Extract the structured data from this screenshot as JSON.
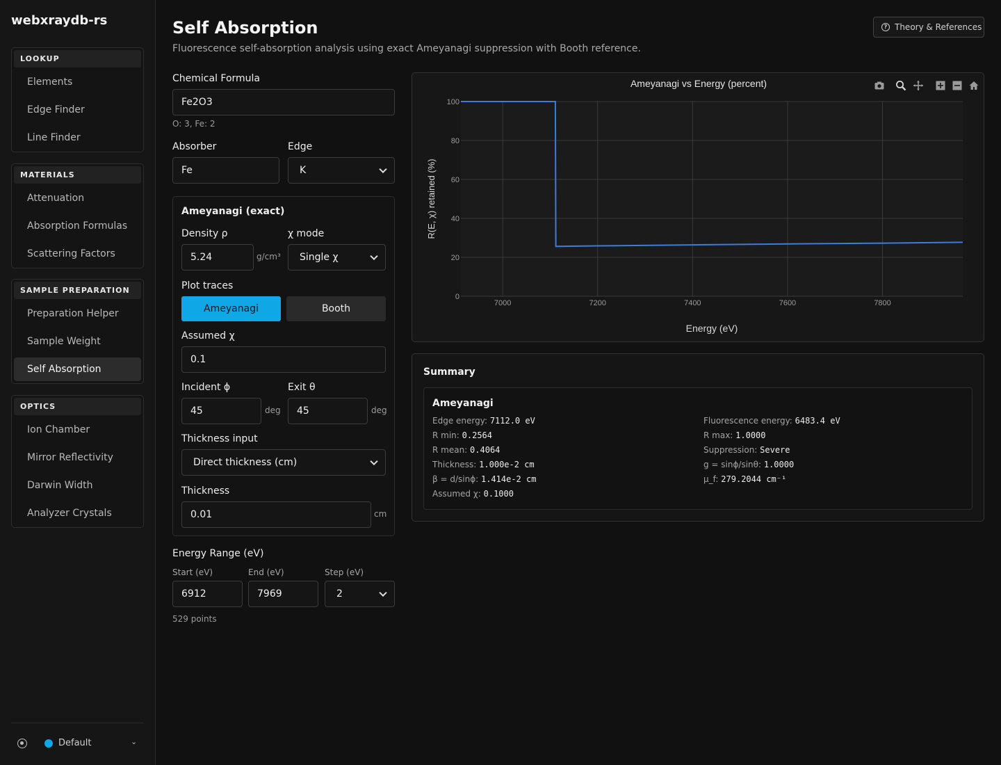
{
  "app": {
    "brand": "webxraydb-rs"
  },
  "sidebar": {
    "groups": [
      {
        "heading": "LOOKUP",
        "items": [
          "Elements",
          "Edge Finder",
          "Line Finder"
        ]
      },
      {
        "heading": "MATERIALS",
        "items": [
          "Attenuation",
          "Absorption Formulas",
          "Scattering Factors"
        ]
      },
      {
        "heading": "SAMPLE PREPARATION",
        "items": [
          "Preparation Helper",
          "Sample Weight",
          "Self Absorption"
        ]
      },
      {
        "heading": "OPTICS",
        "items": [
          "Ion Chamber",
          "Mirror Reflectivity",
          "Darwin Width",
          "Analyzer Crystals"
        ]
      }
    ],
    "active_item": "Self Absorption",
    "footer": {
      "theme_name": "Default",
      "theme_color": "#0fa7e6"
    }
  },
  "header": {
    "title": "Self Absorption",
    "subtitle": "Fluorescence self-absorption analysis using exact Ameyanagi suppression with Booth reference.",
    "theory_button": "Theory & References"
  },
  "form": {
    "formula_label": "Chemical Formula",
    "formula_value": "Fe2O3",
    "formula_parsed": "O: 3, Fe: 2",
    "absorber_label": "Absorber",
    "absorber_value": "Fe",
    "edge_label": "Edge",
    "edge_value": "K",
    "ameyanagi": {
      "title": "Ameyanagi (exact)",
      "density_label": "Density ρ",
      "density_value": "5.24",
      "density_unit": "g/cm³",
      "chi_mode_label": "χ mode",
      "chi_mode_value": "Single χ",
      "plot_traces_label": "Plot traces",
      "trace_ameyanagi": "Ameyanagi",
      "trace_booth": "Booth",
      "assumed_chi_label": "Assumed χ",
      "assumed_chi_value": "0.1",
      "incident_label": "Incident ϕ",
      "incident_value": "45",
      "exit_label": "Exit θ",
      "exit_value": "45",
      "angle_unit": "deg",
      "thickness_input_label": "Thickness input",
      "thickness_input_value": "Direct thickness (cm)",
      "thickness_label": "Thickness",
      "thickness_value": "0.01",
      "thickness_unit": "cm"
    },
    "energy": {
      "title": "Energy Range (eV)",
      "start_label": "Start (eV)",
      "start_value": "6912",
      "end_label": "End (eV)",
      "end_value": "7969",
      "step_label": "Step (eV)",
      "step_value": "2",
      "points": "529 points"
    }
  },
  "chart_data": {
    "type": "line",
    "title": "Ameyanagi vs Energy (percent)",
    "xlabel": "Energy (eV)",
    "ylabel": "R(E, χ) retained (%)",
    "xlim": [
      6912,
      7969
    ],
    "ylim": [
      0,
      100
    ],
    "xticks": [
      7000,
      7200,
      7400,
      7600,
      7800
    ],
    "yticks": [
      0,
      20,
      40,
      60,
      80,
      100
    ],
    "grid": true,
    "color": "#3b7ddd",
    "series": [
      {
        "x": [
          6912,
          7111,
          7112,
          7200,
          7400,
          7600,
          7800,
          7969
        ],
        "y": [
          100,
          100,
          25.6,
          25.9,
          26.4,
          26.9,
          27.3,
          27.7
        ]
      }
    ],
    "toolbar_icons": [
      "camera-icon",
      "zoom-icon",
      "pan-icon",
      "zoom-in-icon",
      "zoom-out-icon",
      "home-icon"
    ]
  },
  "summary": {
    "title": "Summary",
    "card_title": "Ameyanagi",
    "left": [
      {
        "k": "Edge energy:",
        "v": "7112.0 eV"
      },
      {
        "k": "R min:",
        "v": "0.2564"
      },
      {
        "k": "R mean:",
        "v": "0.4064"
      },
      {
        "k": "Thickness:",
        "v": "1.000e-2 cm"
      },
      {
        "k": "β = d/sinϕ:",
        "v": "1.414e-2 cm"
      },
      {
        "k": "Assumed χ:",
        "v": "0.1000"
      }
    ],
    "right": [
      {
        "k": "Fluorescence energy:",
        "v": "6483.4 eV"
      },
      {
        "k": "R max:",
        "v": "1.0000"
      },
      {
        "k": "Suppression:",
        "v": "Severe"
      },
      {
        "k": "g = sinϕ/sinθ:",
        "v": "1.0000"
      },
      {
        "k": "μ_f:",
        "v": "279.2044 cm⁻¹"
      }
    ]
  }
}
